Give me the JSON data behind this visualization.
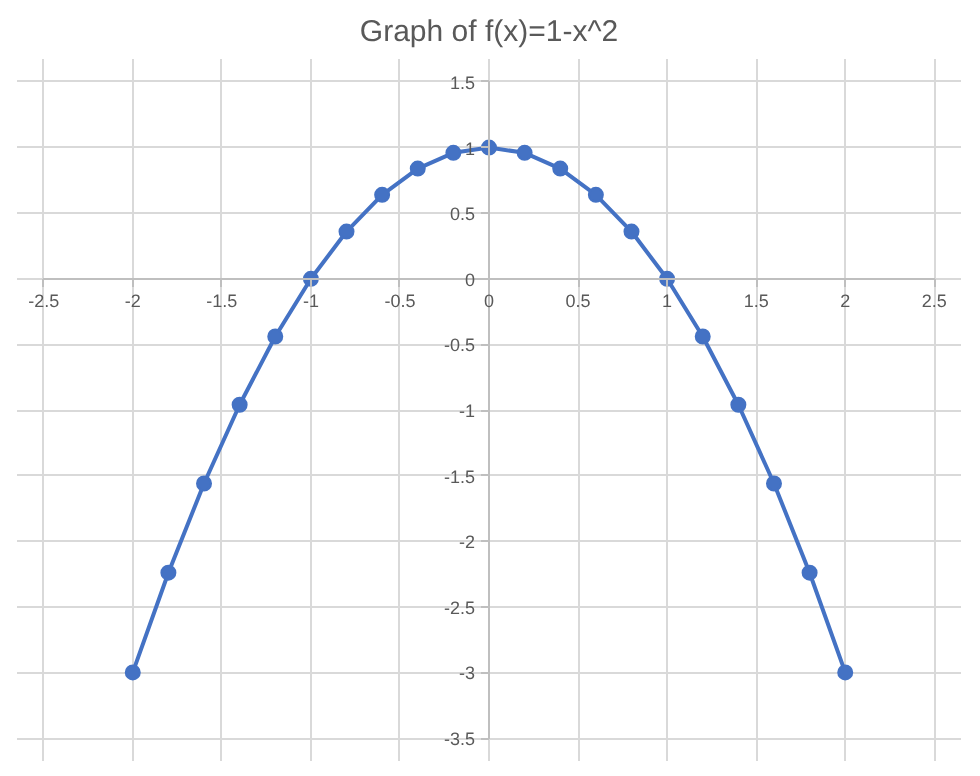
{
  "chart_data": {
    "type": "line",
    "title": "Graph of f(x)=1-x^2",
    "x": [
      -2,
      -1.8,
      -1.6,
      -1.4,
      -1.2,
      -1,
      -0.8,
      -0.6,
      -0.4,
      -0.2,
      0,
      0.2,
      0.4,
      0.6,
      0.8,
      1,
      1.2,
      1.4,
      1.6,
      1.8,
      2
    ],
    "series": [
      {
        "color": "#4472c4",
        "values": [
          -3,
          -2.24,
          -1.56,
          -0.96,
          -0.44,
          0,
          0.36,
          0.64,
          0.84,
          0.96,
          1,
          0.96,
          0.84,
          0.64,
          0.36,
          0,
          -0.44,
          -0.96,
          -1.56,
          -2.24,
          -3
        ]
      }
    ],
    "xlim": [
      -2.5,
      2.5
    ],
    "ylim": [
      -3.5,
      1.5
    ],
    "xticks": [
      -2.5,
      -2,
      -1.5,
      -1,
      -0.5,
      0,
      0.5,
      1,
      1.5,
      2,
      2.5
    ],
    "yticks": [
      -3.5,
      -3,
      -2.5,
      -2,
      -1.5,
      -1,
      -0.5,
      0,
      0.5,
      1,
      1.5
    ],
    "grid": true,
    "marker": "circle",
    "line_style": "solid"
  }
}
